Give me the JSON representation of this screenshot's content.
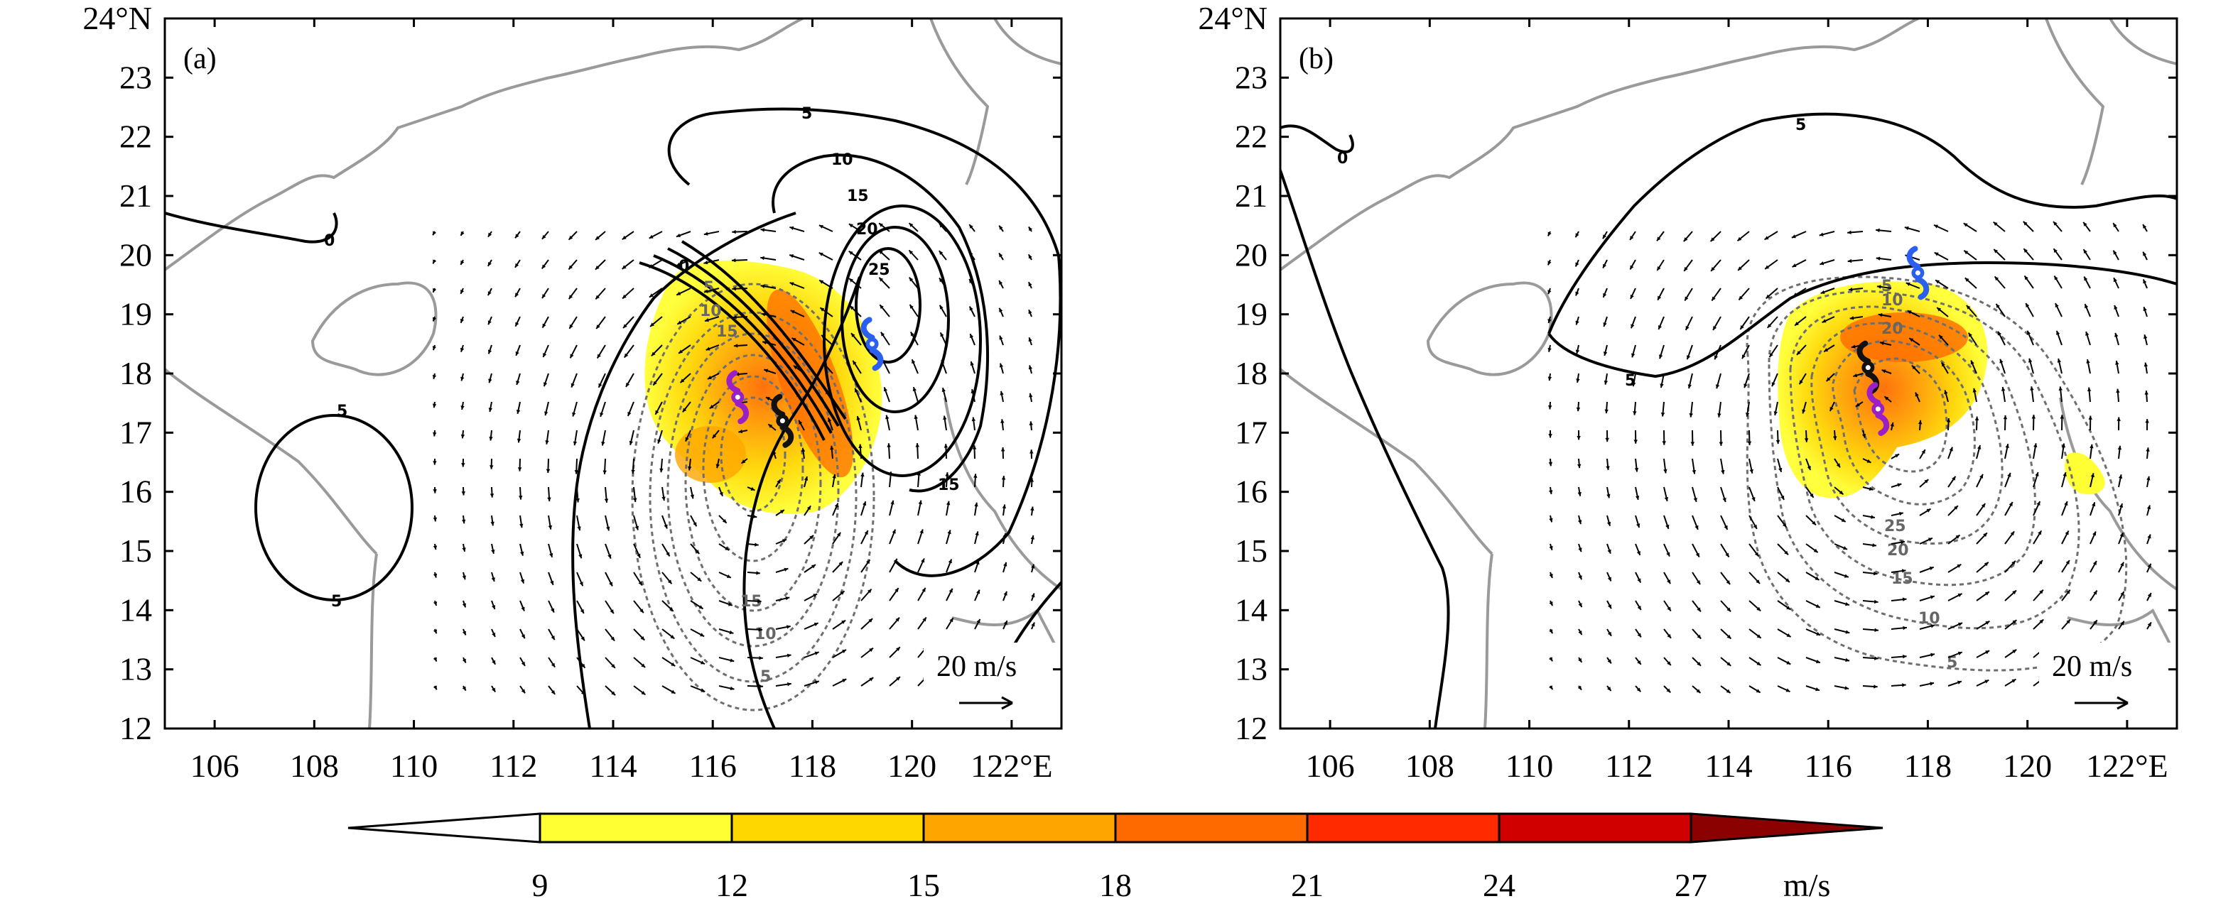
{
  "panels": [
    {
      "id": "a",
      "label": "(a)",
      "ref_vector": "20 m/s",
      "solid_contours": [
        "5",
        "10",
        "15",
        "20",
        "25",
        "0",
        "0",
        "5",
        "5",
        "15"
      ],
      "dashed_contours": [
        "5",
        "10",
        "15",
        "15",
        "10",
        "5"
      ],
      "shading_peak_ms": 19,
      "markers": [
        {
          "name": "typhoon-icon-blue",
          "lon": 119.2,
          "lat": 18.5,
          "color": "#2b5ff0"
        },
        {
          "name": "typhoon-icon-purple",
          "lon": 116.5,
          "lat": 17.6,
          "color": "#9b1fc6"
        },
        {
          "name": "typhoon-icon-black",
          "lon": 117.4,
          "lat": 17.2,
          "color": "#111111"
        }
      ]
    },
    {
      "id": "b",
      "label": "(b)",
      "ref_vector": "20 m/s",
      "solid_contours": [
        "0",
        "5",
        "5"
      ],
      "dashed_contours": [
        "5",
        "10",
        "20",
        "25",
        "20",
        "15",
        "10",
        "5"
      ],
      "shading_peak_ms": 20,
      "markers": [
        {
          "name": "typhoon-icon-blue",
          "lon": 117.8,
          "lat": 19.7,
          "color": "#2b5ff0"
        },
        {
          "name": "typhoon-icon-black",
          "lon": 116.8,
          "lat": 18.1,
          "color": "#111111"
        },
        {
          "name": "typhoon-icon-purple",
          "lon": 117.0,
          "lat": 17.4,
          "color": "#9b1fc6"
        }
      ]
    }
  ],
  "axes": {
    "lon_ticks": [
      "106",
      "108",
      "110",
      "112",
      "114",
      "116",
      "118",
      "120",
      "122°E"
    ],
    "lat_ticks": [
      "24°N",
      "23",
      "22",
      "21",
      "20",
      "19",
      "18",
      "17",
      "16",
      "15",
      "14",
      "13",
      "12"
    ],
    "lon_range": [
      105,
      123
    ],
    "lat_range": [
      12,
      24
    ]
  },
  "colorbar": {
    "ticks": [
      "9",
      "12",
      "15",
      "18",
      "21",
      "24",
      "27"
    ],
    "unit": "m/s",
    "colors": [
      "#ffffff",
      "#ffff33",
      "#ffd700",
      "#ffa500",
      "#ff6a00",
      "#ff2a00",
      "#d00000",
      "#8b0000"
    ]
  }
}
